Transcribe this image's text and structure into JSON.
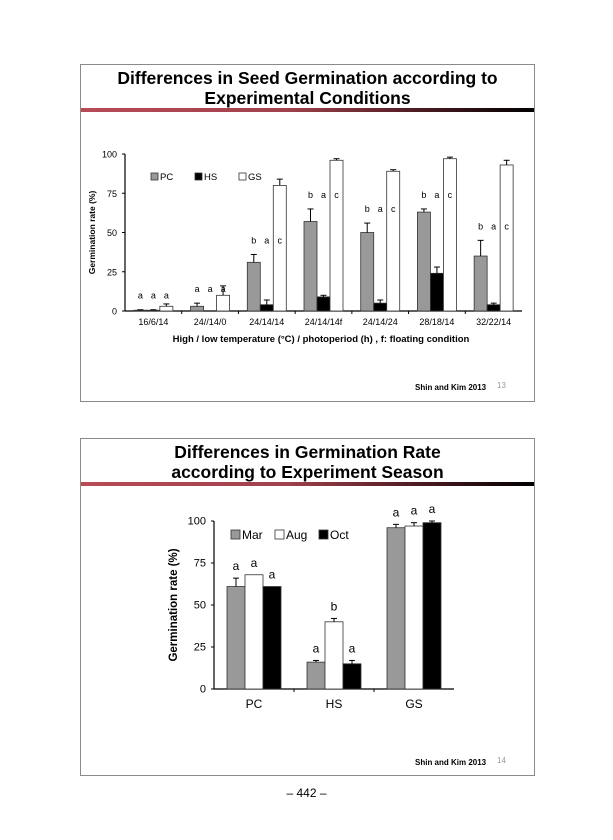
{
  "page": {
    "number_label": "– 442 –"
  },
  "slides": [
    {
      "title_line1": "Differences in Seed Germination according to",
      "title_line2": "Experimental Conditions",
      "credit": "Shin and Kim 2013",
      "slide_number": "13"
    },
    {
      "title_line1": "Differences in Germination Rate",
      "title_line2": "according to Experiment Season",
      "credit": "Shin and Kim 2013",
      "slide_number": "14"
    }
  ],
  "chart_data": [
    {
      "type": "bar",
      "title": "Differences in Seed Germination according to Experimental Conditions",
      "xlabel": "High / low temperature (°C) / photoperiod (h) , f: floating condition",
      "ylabel": "Germination rate (%)",
      "ylim": [
        0,
        100
      ],
      "yticks": [
        0,
        25,
        50,
        75,
        100
      ],
      "legend_position": "top-left",
      "categories": [
        "16/6/14",
        "24//14/0",
        "24/14/14",
        "24/14/14f",
        "24/14/24",
        "28/18/14",
        "32/22/14"
      ],
      "series": [
        {
          "name": "PC",
          "color": "#999999",
          "values": [
            0.5,
            3,
            31,
            57,
            50,
            63,
            35
          ],
          "errors": [
            0.3,
            2,
            5,
            8,
            6,
            2,
            10
          ]
        },
        {
          "name": "HS",
          "color": "#000000",
          "values": [
            0.5,
            0,
            4,
            9,
            5,
            24,
            4
          ],
          "errors": [
            0.3,
            0,
            3,
            1,
            2,
            4,
            1
          ]
        },
        {
          "name": "GS",
          "color": "#ffffff",
          "values": [
            3,
            10,
            80,
            96,
            89,
            97,
            93
          ],
          "errors": [
            1.5,
            6,
            4,
            1,
            1,
            1,
            3
          ]
        }
      ],
      "significance_labels": [
        [
          "a",
          "a",
          "a"
        ],
        [
          "a",
          "a",
          "a"
        ],
        [
          "b",
          "a",
          "c"
        ],
        [
          "b",
          "a",
          "c"
        ],
        [
          "b",
          "a",
          "c"
        ],
        [
          "b",
          "a",
          "c"
        ],
        [
          "b",
          "a",
          "c"
        ]
      ],
      "grid": false
    },
    {
      "type": "bar",
      "title": "Differences in Germination Rate according to Experiment Season",
      "xlabel": "",
      "ylabel": "Germination rate (%)",
      "ylim": [
        0,
        100
      ],
      "yticks": [
        0,
        25,
        50,
        75,
        100
      ],
      "legend_position": "top-left",
      "categories": [
        "PC",
        "HS",
        "GS"
      ],
      "series": [
        {
          "name": "Mar",
          "color": "#999999",
          "values": [
            61,
            16,
            96
          ],
          "errors": [
            5,
            1,
            2
          ]
        },
        {
          "name": "Aug",
          "color": "#ffffff",
          "values": [
            68,
            40,
            97
          ],
          "errors": [
            0,
            2,
            2
          ]
        },
        {
          "name": "Oct",
          "color": "#000000",
          "values": [
            61,
            15,
            99
          ],
          "errors": [
            0,
            2,
            1
          ]
        }
      ],
      "significance_labels": [
        [
          "a",
          "a",
          "a"
        ],
        [
          "a",
          "b",
          "a"
        ],
        [
          "a",
          "a",
          "a"
        ]
      ],
      "grid": false
    }
  ]
}
